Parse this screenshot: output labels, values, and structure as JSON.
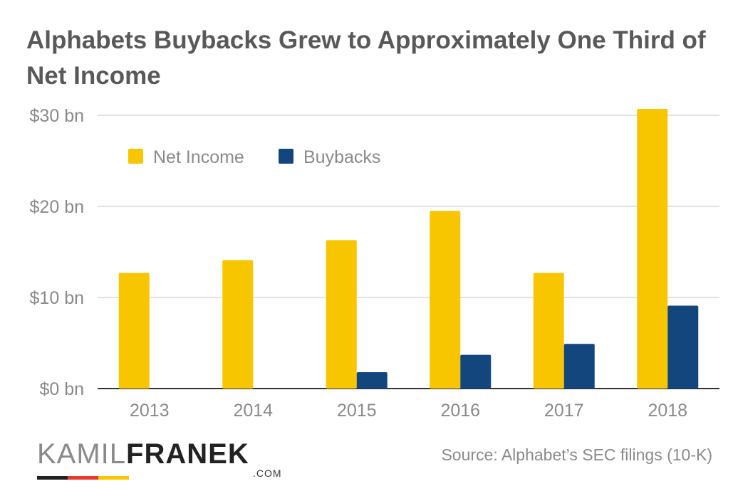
{
  "title": "Alphabets Buybacks Grew to Approximately One Third of Net Income",
  "source": "Source: Alphabet’s SEC filings (10-K)",
  "logo": {
    "part1": "KAMIL",
    "part2": "FRANEK",
    "domain": ".COM",
    "bar_colors": [
      "#222222",
      "#e63a2e",
      "#f7c600"
    ]
  },
  "colors": {
    "net_income": "#f7c600",
    "buybacks": "#14467e",
    "axis_text": "#8a8a8a",
    "grid": "#d9d9d9",
    "baseline": "#333333"
  },
  "chart_data": {
    "type": "bar",
    "title": "Alphabets Buybacks Grew to Approximately One Third of Net Income",
    "categories": [
      "2013",
      "2014",
      "2015",
      "2016",
      "2017",
      "2018"
    ],
    "series": [
      {
        "name": "Net Income",
        "values": [
          12.7,
          14.1,
          16.3,
          19.5,
          12.7,
          30.7
        ]
      },
      {
        "name": "Buybacks",
        "values": [
          0,
          0,
          1.8,
          3.7,
          4.9,
          9.1
        ]
      }
    ],
    "ylim": [
      0,
      30
    ],
    "yticks": [
      0,
      10,
      20,
      30
    ],
    "ytick_labels": [
      "$0 bn",
      "$10 bn",
      "$20 bn",
      "$30 bn"
    ],
    "grid": true,
    "legend_position": "top-left",
    "xlabel": "",
    "ylabel": ""
  }
}
